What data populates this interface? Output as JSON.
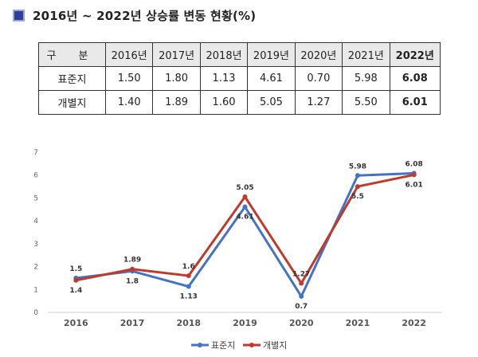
{
  "title": "2016년 ~ 2022년 상승률 변동 현황(%)",
  "table": {
    "header_label": "구 분",
    "years": [
      "2016년",
      "2017년",
      "2018년",
      "2019년",
      "2020년",
      "2021년",
      "2022년"
    ],
    "rows": [
      {
        "label": "표준지",
        "values": [
          "1.50",
          "1.80",
          "1.13",
          "4.61",
          "0.70",
          "5.98",
          "6.08"
        ]
      },
      {
        "label": "개별지",
        "values": [
          "1.40",
          "1.89",
          "1.60",
          "5.05",
          "1.27",
          "5.50",
          "6.01"
        ]
      }
    ]
  },
  "chart_data": {
    "type": "line",
    "categories": [
      "2016",
      "2017",
      "2018",
      "2019",
      "2020",
      "2021",
      "2022"
    ],
    "ylim": [
      0,
      7
    ],
    "yticks": [
      0,
      1,
      2,
      3,
      4,
      5,
      6,
      7
    ],
    "legend_position": "bottom",
    "grid": false,
    "series": [
      {
        "name": "표준지",
        "color": "#4472c4",
        "values": [
          1.5,
          1.8,
          1.13,
          4.61,
          0.7,
          5.98,
          6.08
        ],
        "labels": [
          "1.5",
          "1.8",
          "1.13",
          "4.61",
          "0.7",
          "5.98",
          "6.08"
        ]
      },
      {
        "name": "개별지",
        "color": "#c0392b",
        "values": [
          1.4,
          1.89,
          1.6,
          5.05,
          1.27,
          5.5,
          6.01
        ],
        "labels": [
          "1.4",
          "1.89",
          "1.6",
          "5.05",
          "1.27",
          "5.5",
          "6.01"
        ]
      }
    ]
  }
}
